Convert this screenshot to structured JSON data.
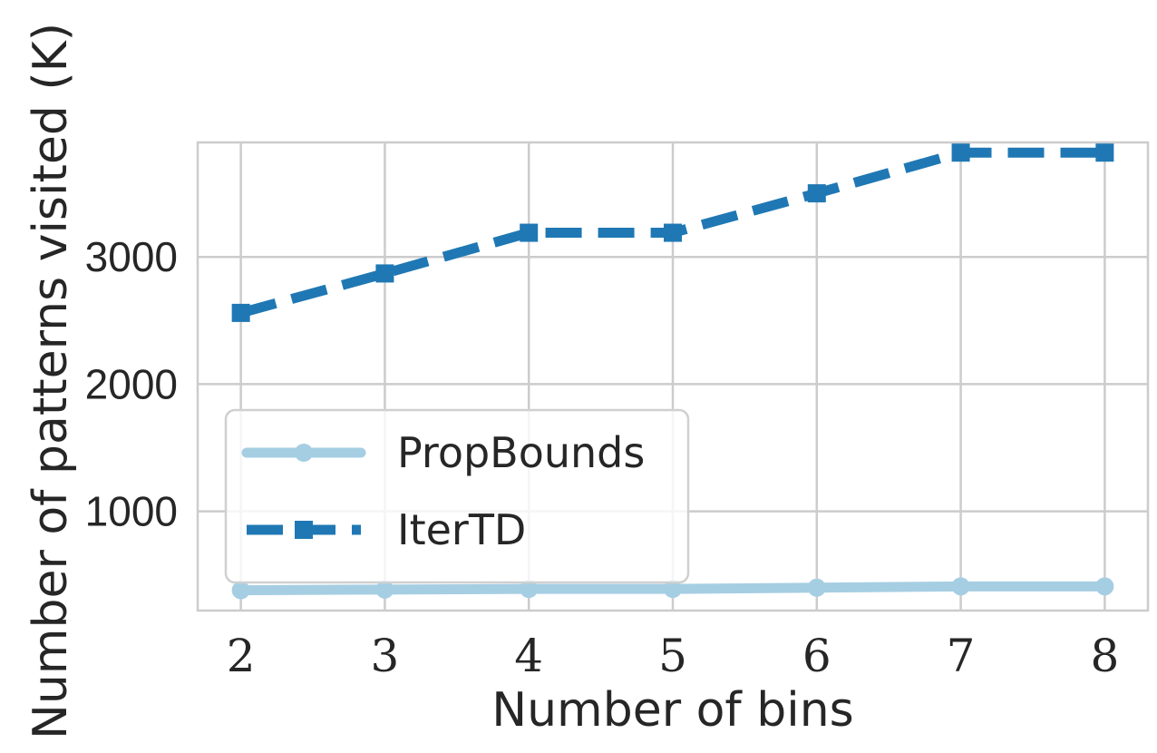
{
  "chart_data": {
    "type": "line",
    "xlabel": "Number of bins",
    "ylabel": "Number of patterns visited (K)",
    "x": [
      2,
      3,
      4,
      5,
      6,
      7,
      8
    ],
    "xlim": [
      1.7,
      8.3
    ],
    "ylim": [
      220,
      3900
    ],
    "yticks": [
      1000,
      2000,
      3000
    ],
    "ytick_labels": [
      "1000",
      "2000",
      "3000"
    ],
    "grid": true,
    "legend_position": "lower-left",
    "series": [
      {
        "name": "PropBounds",
        "values": [
          380,
          385,
          390,
          390,
          400,
          410,
          410
        ],
        "color": "#a6cee3",
        "style": "solid",
        "marker": "circle"
      },
      {
        "name": "IterTD",
        "values": [
          2560,
          2870,
          3190,
          3190,
          3500,
          3820,
          3820
        ],
        "color": "#1f78b4",
        "style": "dashed",
        "marker": "square"
      }
    ]
  }
}
